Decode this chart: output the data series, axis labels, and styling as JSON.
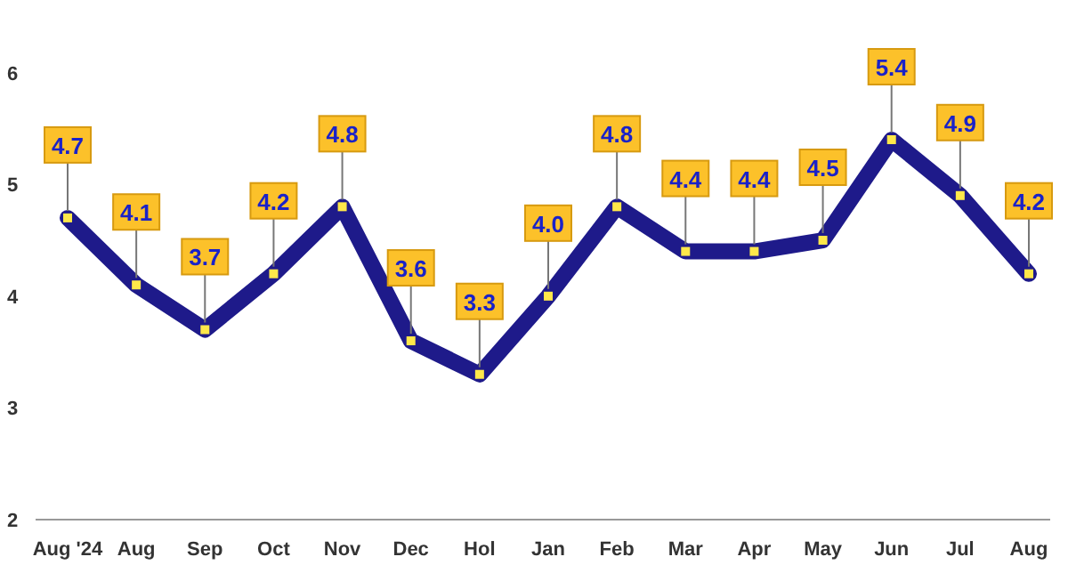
{
  "chart_data": {
    "type": "line",
    "categories": [
      "Aug '24",
      "Aug",
      "Sep",
      "Oct",
      "Nov",
      "Dec",
      "Hol",
      "Jan",
      "Feb",
      "Mar",
      "Apr",
      "May",
      "Jun",
      "Jul",
      "Aug"
    ],
    "series": [
      {
        "color": "#1e1a8a",
        "values": [
          4.7,
          4.1,
          3.7,
          4.2,
          4.8,
          3.6,
          3.3,
          4.0,
          4.8,
          4.4,
          4.4,
          4.5,
          5.4,
          4.9,
          4.2
        ],
        "value_labels": [
          "4.7",
          "4.1",
          "3.7",
          "4.2",
          "4.8",
          "3.6",
          "3.3",
          "4.0",
          "4.8",
          "4.4",
          "4.4",
          "4.5",
          "5.4",
          "4.9",
          "4.2"
        ]
      }
    ],
    "ylim": [
      2,
      6.65
    ],
    "yticks": [
      2,
      3,
      4,
      5,
      6
    ],
    "grid": false,
    "marker": "square",
    "line_style": "solid"
  }
}
